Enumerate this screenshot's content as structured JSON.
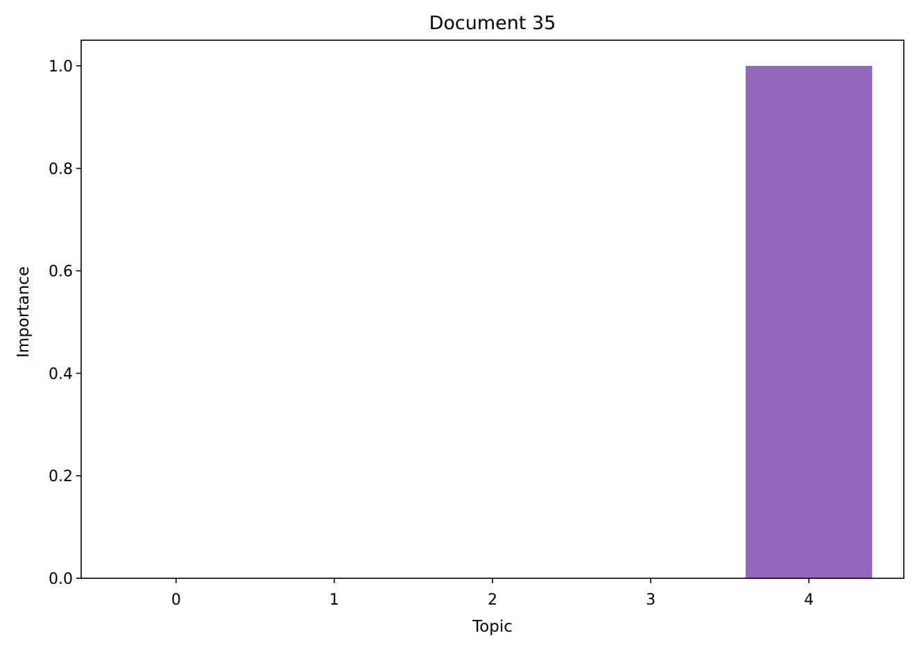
{
  "chart_data": {
    "type": "bar",
    "title": "Document 35",
    "xlabel": "Topic",
    "ylabel": "Importance",
    "categories": [
      "0",
      "1",
      "2",
      "3",
      "4"
    ],
    "values": [
      0.0,
      0.0,
      0.0,
      0.0,
      1.0
    ],
    "bar_color": "#9467bd",
    "ylim": [
      0,
      1.05
    ],
    "yticks": [
      "0.0",
      "0.2",
      "0.4",
      "0.6",
      "0.8",
      "1.0"
    ],
    "grid": false,
    "legend": "none"
  }
}
